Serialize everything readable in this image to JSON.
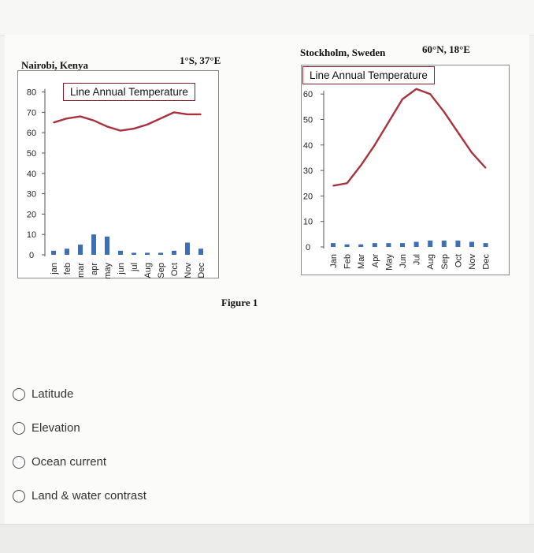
{
  "page": {
    "figure_caption": "Figure 1",
    "options": [
      {
        "label": "Latitude",
        "selected": false
      },
      {
        "label": "Elevation",
        "selected": false
      },
      {
        "label": "Ocean current",
        "selected": false
      },
      {
        "label": "Land & water contrast",
        "selected": false
      }
    ]
  },
  "chart_data": [
    {
      "type": "line+bar",
      "location": "Nairobi, Kenya",
      "coords": "1°S, 37°E",
      "legend": "Line Annual Temperature",
      "categories": [
        "jan",
        "feb",
        "mar",
        "apr",
        "may",
        "jun",
        "jul",
        "Aug",
        "Sep",
        "Oct",
        "Nov",
        "Dec"
      ],
      "ylim": [
        0,
        80
      ],
      "yticks": [
        0,
        10,
        20,
        30,
        40,
        50,
        60,
        70,
        80
      ],
      "temperature": [
        65,
        67,
        68,
        66,
        63,
        61,
        62,
        64,
        67,
        70,
        69,
        69
      ],
      "precipitation": [
        2,
        3,
        5,
        10,
        9,
        2,
        1,
        1,
        1,
        2,
        6,
        3
      ],
      "line_color": "#a8323e",
      "bar_color": "#3d6fb8"
    },
    {
      "type": "line+bar",
      "location": "Stockholm, Sweden",
      "coords": "60°N, 18°E",
      "legend": "Line Annual Temperature",
      "categories": [
        "Jan",
        "Feb",
        "Mar",
        "Apr",
        "May",
        "Jun",
        "Jul",
        "Aug",
        "Sep",
        "Oct",
        "Nov",
        "Dec"
      ],
      "ylim": [
        0,
        60
      ],
      "yticks": [
        0,
        10,
        20,
        30,
        40,
        50,
        60
      ],
      "temperature": [
        24,
        25,
        32,
        40,
        49,
        58,
        62,
        60,
        53,
        45,
        37,
        31
      ],
      "precipitation": [
        1.5,
        1,
        1,
        1.5,
        1.5,
        1.5,
        2,
        2.5,
        2.5,
        2.5,
        2,
        1.5
      ],
      "line_color": "#a8323e",
      "bar_color": "#3d6fb8"
    }
  ]
}
